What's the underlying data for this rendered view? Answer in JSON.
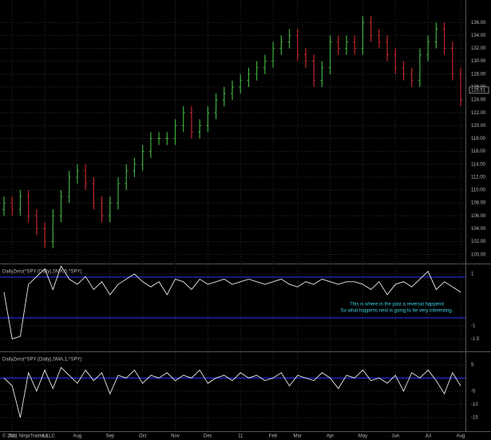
{
  "footer": "© 2011 NinjaTrader, LLC",
  "chart_data": [
    {
      "type": "ohlc",
      "up_color": "#3fae3f",
      "down_color": "#c0262b",
      "categories": [
        null,
        "Jun",
        null,
        null,
        null,
        "Jul",
        null,
        null,
        null,
        "Aug",
        null,
        null,
        null,
        "Sep",
        null,
        null,
        null,
        "Oct",
        null,
        null,
        null,
        "Nov",
        null,
        null,
        null,
        "Dec",
        null,
        null,
        null,
        "11",
        null,
        null,
        null,
        "Feb",
        null,
        null,
        "Mar",
        null,
        null,
        null,
        "Apr",
        null,
        null,
        null,
        "May",
        null,
        null,
        null,
        "Jun",
        null,
        null,
        null,
        "Jul",
        null,
        null,
        null,
        "Aug"
      ],
      "open": [
        107,
        108,
        107,
        109,
        106,
        104,
        102,
        106,
        109,
        112,
        113,
        111,
        108,
        106,
        108,
        111,
        113,
        114,
        116,
        118,
        118,
        118,
        120,
        122,
        119,
        120,
        122,
        124,
        125,
        126,
        127,
        128,
        129,
        130,
        132,
        133,
        134,
        131,
        130,
        127,
        129,
        133,
        132,
        133,
        132,
        136,
        134,
        133,
        131,
        129,
        128,
        127,
        131,
        133,
        135,
        132,
        128
      ],
      "high": [
        109,
        109,
        110,
        110,
        107,
        105,
        107,
        110,
        113,
        114,
        114,
        112,
        109,
        109,
        112,
        114,
        115,
        117,
        119,
        119,
        119,
        121,
        123,
        123,
        121,
        123,
        125,
        126,
        127,
        128,
        129,
        130,
        131,
        133,
        134,
        135,
        135,
        132,
        131,
        130,
        134,
        134,
        134,
        134,
        137,
        137,
        135,
        134,
        132,
        130,
        129,
        132,
        134,
        136,
        136,
        133,
        129
      ],
      "low": [
        106,
        106,
        106,
        105,
        103,
        101,
        101,
        105,
        108,
        111,
        110,
        107,
        105,
        105,
        107,
        110,
        112,
        113,
        115,
        117,
        117,
        117,
        119,
        118,
        118,
        119,
        121,
        123,
        124,
        125,
        126,
        127,
        128,
        129,
        131,
        132,
        130,
        129,
        126,
        126,
        128,
        131,
        131,
        131,
        131,
        133,
        132,
        130,
        128,
        127,
        126,
        126,
        130,
        132,
        131,
        127,
        123
      ],
      "close": [
        108,
        107,
        109,
        106,
        104,
        102,
        106,
        109,
        112,
        113,
        111,
        108,
        106,
        108,
        111,
        113,
        114,
        116,
        118,
        118,
        118,
        120,
        122,
        119,
        120,
        122,
        124,
        125,
        126,
        127,
        128,
        129,
        130,
        132,
        133,
        134,
        131,
        130,
        127,
        129,
        133,
        132,
        133,
        132,
        136,
        134,
        133,
        131,
        129,
        128,
        127,
        131,
        133,
        135,
        132,
        128,
        124
      ],
      "last_price": 125.51,
      "ylim": [
        98.6,
        139.5
      ],
      "yticks": [
        {
          "value": 100,
          "label": "100.00"
        },
        {
          "value": 102,
          "label": "102.00"
        },
        {
          "value": 104,
          "label": "104.00"
        },
        {
          "value": 106,
          "label": "106.00"
        },
        {
          "value": 108,
          "label": "108.00"
        },
        {
          "value": 110,
          "label": "110.00"
        },
        {
          "value": 112,
          "label": "112.00"
        },
        {
          "value": 114,
          "label": "114.00"
        },
        {
          "value": 116,
          "label": "116.00"
        },
        {
          "value": 118,
          "label": "118.00"
        },
        {
          "value": 120,
          "label": "120.00"
        },
        {
          "value": 122,
          "label": "122.00"
        },
        {
          "value": 124,
          "label": "124.00"
        },
        {
          "value": 126,
          "label": "126.00"
        },
        {
          "value": 128,
          "label": "128.00"
        },
        {
          "value": 130,
          "label": "130.00"
        },
        {
          "value": 132,
          "label": "132.00"
        },
        {
          "value": 134,
          "label": "134.00"
        },
        {
          "value": 136,
          "label": "136.00"
        }
      ],
      "grid": true
    },
    {
      "type": "line",
      "title": "DailyZero(^SPY (Daily),SMA,5,^SPY)",
      "color": "#e8e8e8",
      "level_color": "#2b35ff",
      "levels": [
        0.88,
        -0.69
      ],
      "values": [
        0.3,
        -1.5,
        -1.4,
        0.6,
        0.9,
        1.2,
        0.4,
        1.3,
        0.8,
        0.6,
        0.9,
        0.4,
        0.7,
        0.2,
        0.6,
        0.8,
        1.0,
        0.7,
        0.5,
        0.7,
        0.2,
        0.8,
        0.7,
        0.4,
        0.8,
        0.6,
        0.7,
        0.8,
        0.6,
        0.7,
        0.8,
        0.7,
        0.6,
        0.7,
        0.8,
        0.6,
        0.5,
        0.7,
        0.6,
        0.8,
        0.7,
        0.6,
        0.7,
        0.7,
        0.6,
        0.4,
        0.7,
        0.2,
        0.6,
        0.7,
        0.5,
        0.8,
        1.1,
        0.4,
        0.7,
        0.5,
        0.3
      ],
      "ylim": [
        -1.98,
        1.37
      ],
      "yticks": [
        1,
        -1,
        -1.5
      ],
      "grid": true,
      "annotation": [
        "This is where in the past a reversal happend",
        "So what happens next is going to be very interesting."
      ]
    },
    {
      "type": "line",
      "title": "DailyZero(^SPY (Daily),SMA,1,^SPY)",
      "color": "#e8e8e8",
      "level_color": "#2b35ff",
      "levels": [
        0
      ],
      "values": [
        0,
        -3,
        -15,
        2,
        -5,
        3,
        -4,
        4,
        1,
        -2,
        3,
        -1,
        2,
        -6,
        1,
        0,
        3,
        -2,
        1,
        0,
        2,
        -1,
        1,
        0,
        3,
        -2,
        0,
        1,
        -1,
        2,
        0,
        1,
        -1,
        0,
        2,
        -3,
        1,
        0,
        -1,
        2,
        0,
        -4,
        1,
        0,
        3,
        -1,
        0,
        -2,
        1,
        -5,
        2,
        0,
        3,
        -1,
        -6,
        2,
        -3
      ],
      "ylim": [
        -20.2,
        9.8
      ],
      "yticks": [
        5,
        -5,
        -10,
        -15
      ],
      "grid": true
    }
  ]
}
